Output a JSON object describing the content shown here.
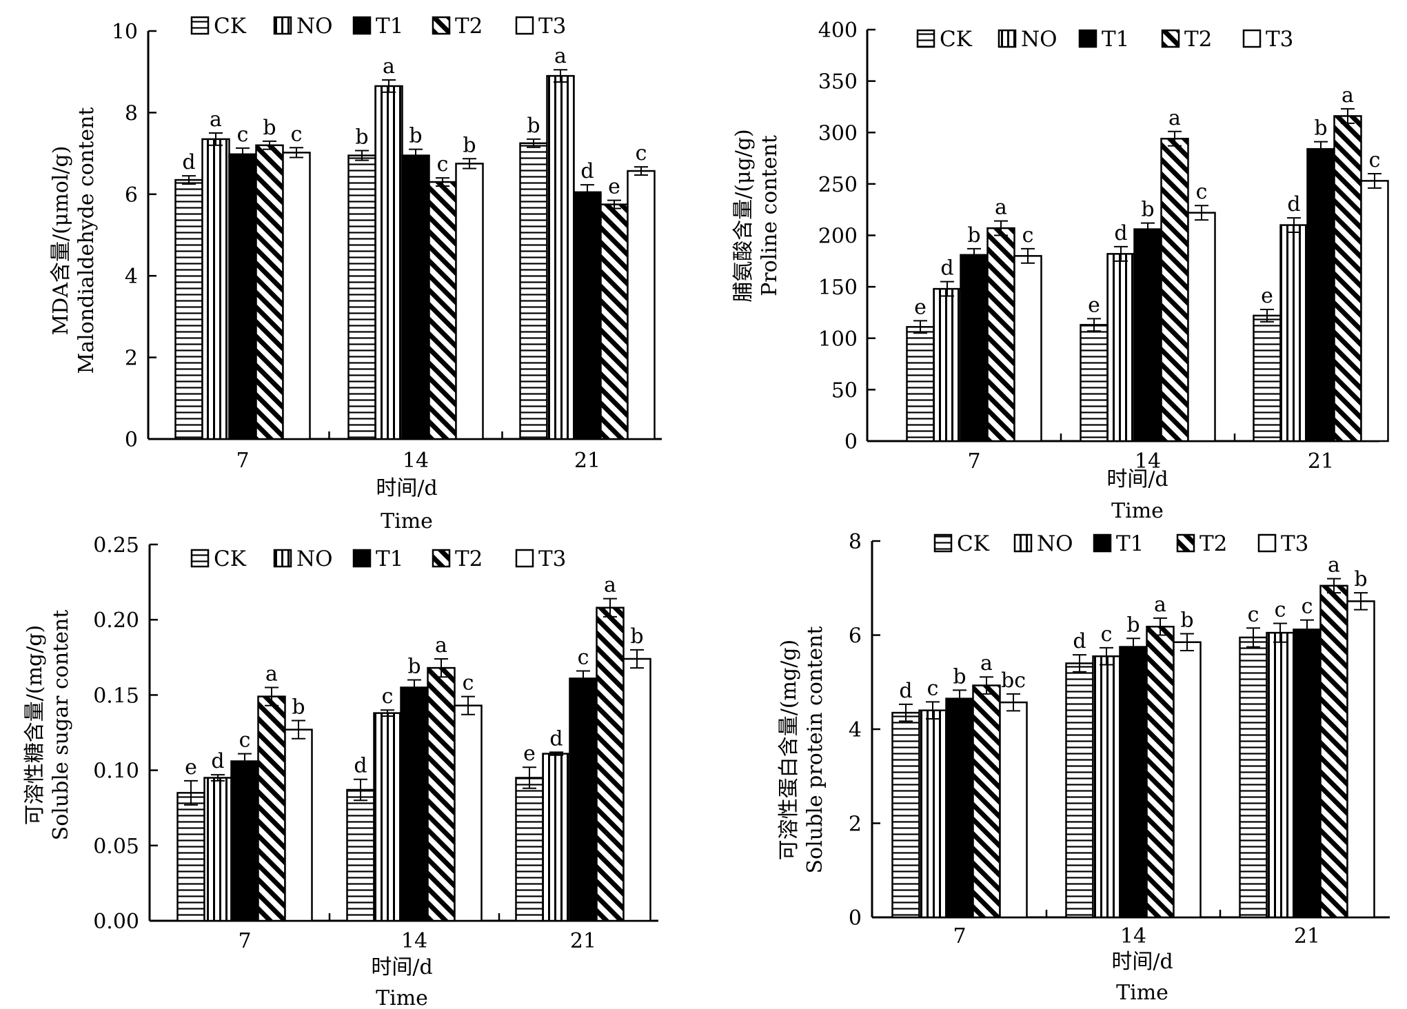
{
  "legend": [
    "CK",
    "NO",
    "T1",
    "T2",
    "T3"
  ],
  "chart_data": [
    {
      "type": "bar",
      "categories": [
        "7",
        "14",
        "21"
      ],
      "xlabel": [
        "时间/d",
        "Time"
      ],
      "ylabel": [
        "MDA含量/(μmol/g)",
        "Malondialdehyde content"
      ],
      "ylim": [
        0,
        10
      ],
      "yticks": [
        "0",
        "2",
        "4",
        "6",
        "8",
        "10"
      ],
      "series": [
        {
          "name": "CK",
          "values": [
            6.35,
            6.95,
            7.25
          ],
          "err": [
            0.1,
            0.12,
            0.1
          ],
          "sig": [
            "d",
            "b",
            "b"
          ]
        },
        {
          "name": "NO",
          "values": [
            7.35,
            8.65,
            8.9
          ],
          "err": [
            0.15,
            0.15,
            0.15
          ],
          "sig": [
            "a",
            "a",
            "a"
          ]
        },
        {
          "name": "T1",
          "values": [
            6.98,
            6.95,
            6.05
          ],
          "err": [
            0.15,
            0.15,
            0.18
          ],
          "sig": [
            "c",
            "b",
            "d"
          ]
        },
        {
          "name": "T2",
          "values": [
            7.2,
            6.3,
            5.75
          ],
          "err": [
            0.1,
            0.1,
            0.1
          ],
          "sig": [
            "b",
            "c",
            "e"
          ]
        },
        {
          "name": "T3",
          "values": [
            7.02,
            6.75,
            6.57
          ],
          "err": [
            0.12,
            0.12,
            0.1
          ],
          "sig": [
            "c",
            "b",
            "c"
          ]
        }
      ]
    },
    {
      "type": "bar",
      "categories": [
        "7",
        "14",
        "21"
      ],
      "xlabel": [
        "时间/d",
        "Time"
      ],
      "ylabel": [
        "脯氨酸含量/(μg/g)",
        "Proline content"
      ],
      "ylim": [
        0,
        400
      ],
      "yticks": [
        "0",
        "50",
        "100",
        "150",
        "200",
        "250",
        "300",
        "350",
        "400"
      ],
      "series": [
        {
          "name": "CK",
          "values": [
            111,
            113,
            122
          ],
          "err": [
            6,
            6,
            6
          ],
          "sig": [
            "e",
            "e",
            "e"
          ]
        },
        {
          "name": "NO",
          "values": [
            148,
            182,
            210
          ],
          "err": [
            7,
            7,
            7
          ],
          "sig": [
            "d",
            "d",
            "d"
          ]
        },
        {
          "name": "T1",
          "values": [
            181,
            206,
            284
          ],
          "err": [
            6,
            6,
            7
          ],
          "sig": [
            "b",
            "b",
            "b"
          ]
        },
        {
          "name": "T2",
          "values": [
            207,
            294,
            316
          ],
          "err": [
            7,
            7,
            7
          ],
          "sig": [
            "a",
            "a",
            "a"
          ]
        },
        {
          "name": "T3",
          "values": [
            180,
            222,
            253
          ],
          "err": [
            7,
            7,
            7
          ],
          "sig": [
            "c",
            "c",
            "c"
          ]
        }
      ]
    },
    {
      "type": "bar",
      "categories": [
        "7",
        "14",
        "21"
      ],
      "xlabel": [
        "时间/d",
        "Time"
      ],
      "ylabel": [
        "可溶性糖含量/(mg/g)",
        "Soluble sugar content"
      ],
      "ylim": [
        0,
        0.25
      ],
      "yticks": [
        "0.00",
        "0.05",
        "0.10",
        "0.15",
        "0.20",
        "0.25"
      ],
      "series": [
        {
          "name": "CK",
          "values": [
            0.085,
            0.087,
            0.095
          ],
          "err": [
            0.008,
            0.007,
            0.007
          ],
          "sig": [
            "e",
            "d",
            "e"
          ]
        },
        {
          "name": "NO",
          "values": [
            0.095,
            0.138,
            0.111
          ],
          "err": [
            0.002,
            0.002,
            0.001
          ],
          "sig": [
            "d",
            "c",
            "d"
          ]
        },
        {
          "name": "T1",
          "values": [
            0.106,
            0.155,
            0.161
          ],
          "err": [
            0.005,
            0.005,
            0.005
          ],
          "sig": [
            "c",
            "b",
            "c"
          ]
        },
        {
          "name": "T2",
          "values": [
            0.149,
            0.168,
            0.208
          ],
          "err": [
            0.006,
            0.006,
            0.006
          ],
          "sig": [
            "a",
            "a",
            "a"
          ]
        },
        {
          "name": "T3",
          "values": [
            0.127,
            0.143,
            0.174
          ],
          "err": [
            0.006,
            0.006,
            0.006
          ],
          "sig": [
            "b",
            "c",
            "b"
          ]
        }
      ]
    },
    {
      "type": "bar",
      "categories": [
        "7",
        "14",
        "21"
      ],
      "xlabel": [
        "时间/d",
        "Time"
      ],
      "ylabel": [
        "可溶性蛋白含量/(mg/g)",
        "Soluble protein content"
      ],
      "ylim": [
        0,
        8
      ],
      "yticks": [
        "0",
        "2",
        "4",
        "6",
        "8"
      ],
      "series": [
        {
          "name": "CK",
          "values": [
            4.35,
            5.4,
            5.95
          ],
          "err": [
            0.18,
            0.18,
            0.2
          ],
          "sig": [
            "d",
            "d",
            "c"
          ]
        },
        {
          "name": "NO",
          "values": [
            4.4,
            5.55,
            6.05
          ],
          "err": [
            0.18,
            0.18,
            0.2
          ],
          "sig": [
            "c",
            "c",
            "c"
          ]
        },
        {
          "name": "T1",
          "values": [
            4.65,
            5.75,
            6.12
          ],
          "err": [
            0.18,
            0.18,
            0.2
          ],
          "sig": [
            "b",
            "b",
            "c"
          ]
        },
        {
          "name": "T2",
          "values": [
            4.93,
            6.18,
            7.05
          ],
          "err": [
            0.18,
            0.18,
            0.15
          ],
          "sig": [
            "a",
            "a",
            "a"
          ]
        },
        {
          "name": "T3",
          "values": [
            4.57,
            5.85,
            6.72
          ],
          "err": [
            0.18,
            0.18,
            0.18
          ],
          "sig": [
            "bc",
            "b",
            "b"
          ]
        }
      ]
    }
  ]
}
